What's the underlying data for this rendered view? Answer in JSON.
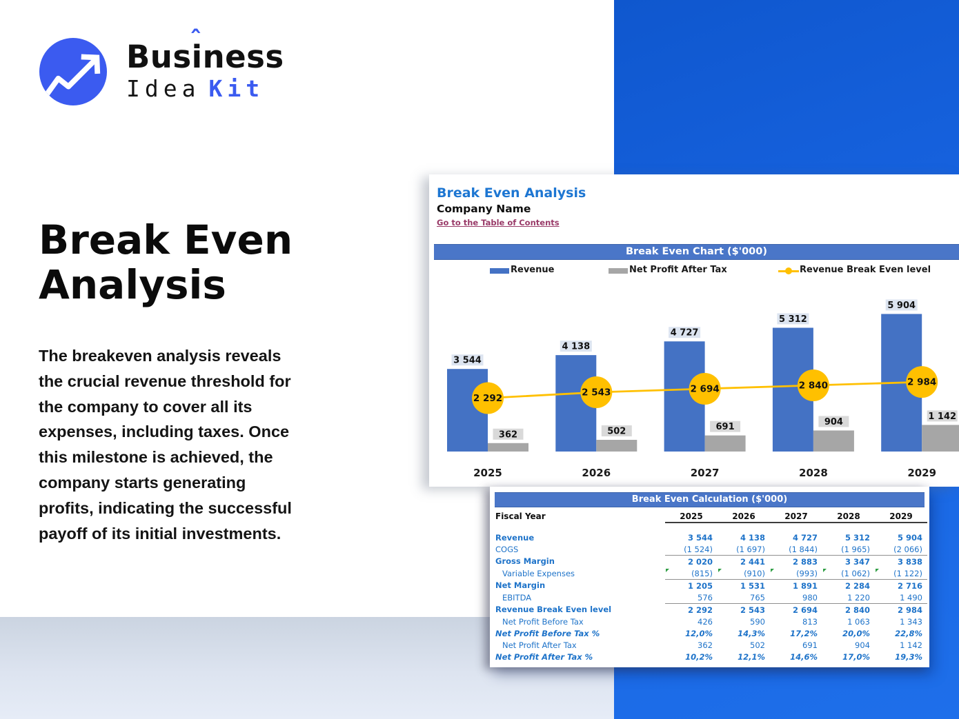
{
  "brand": {
    "name_pre": "Bus",
    "name_i": "i",
    "name_post": "ness",
    "accent_mark": "ˆ",
    "tagline_word1": "Idea",
    "tagline_word2": "Kit"
  },
  "hero": {
    "title_lines": [
      "Break Even",
      "Analysis"
    ],
    "description_lines": [
      "The breakeven analysis reveals",
      "the crucial revenue threshold for",
      "the company to cover all its",
      "expenses, including taxes. Once",
      "this milestone is achieved, the",
      "company starts generating",
      "profits, indicating the successful",
      "payoff of its initial investments."
    ]
  },
  "sheet": {
    "title": "Break Even Analysis",
    "company": "Company Name",
    "toc_link": "Go to the Table of Contents"
  },
  "chart_data": {
    "type": "bar",
    "title": "Break Even Chart ($'000)",
    "categories": [
      "2025",
      "2026",
      "2027",
      "2028",
      "2029"
    ],
    "series": [
      {
        "name": "Revenue",
        "type": "bar",
        "color": "#4472C4",
        "values": [
          3544,
          4138,
          4727,
          5312,
          5904
        ]
      },
      {
        "name": "Net Profit After Tax",
        "type": "bar",
        "color": "#A6A6A6",
        "values": [
          362,
          502,
          691,
          904,
          1142
        ]
      },
      {
        "name": "Revenue Break Even level",
        "type": "line",
        "color": "#FFC000",
        "values": [
          2292,
          2543,
          2694,
          2840,
          2984
        ]
      }
    ],
    "ylim": [
      0,
      6500
    ],
    "grid": false,
    "legend_position": "top",
    "value_label_thousands_separator": "space"
  },
  "calc_table": {
    "title": "Break Even Calculation ($'000)",
    "row_header": "Fiscal Year",
    "columns": [
      "2025",
      "2026",
      "2027",
      "2028",
      "2029"
    ],
    "rows": [
      {
        "label": "Revenue",
        "bold": true,
        "values": [
          "3 544",
          "4 138",
          "4 727",
          "5 312",
          "5 904"
        ]
      },
      {
        "label": "COGS",
        "divider": true,
        "values": [
          "(1 524)",
          "(1 697)",
          "(1 844)",
          "(1 965)",
          "(2 066)"
        ]
      },
      {
        "label": "Gross Margin",
        "bold": true,
        "values": [
          "2 020",
          "2 441",
          "2 883",
          "3 347",
          "3 838"
        ]
      },
      {
        "label": "Variable Expenses",
        "indent": true,
        "divider": true,
        "flags": true,
        "values": [
          "(815)",
          "(910)",
          "(993)",
          "(1 062)",
          "(1 122)"
        ]
      },
      {
        "label": "Net Margin",
        "bold": true,
        "values": [
          "1 205",
          "1 531",
          "1 891",
          "2 284",
          "2 716"
        ]
      },
      {
        "label": "EBITDA",
        "indent": true,
        "divider": true,
        "values": [
          "576",
          "765",
          "980",
          "1 220",
          "1 490"
        ]
      },
      {
        "label": "Revenue Break Even level",
        "bold": true,
        "values": [
          "2 292",
          "2 543",
          "2 694",
          "2 840",
          "2 984"
        ]
      },
      {
        "label": "Net Profit Before Tax",
        "indent": true,
        "values": [
          "426",
          "590",
          "813",
          "1 063",
          "1 343"
        ]
      },
      {
        "label": "Net Profit Before Tax %",
        "bold": true,
        "italic": true,
        "values": [
          "12,0%",
          "14,3%",
          "17,2%",
          "20,0%",
          "22,8%"
        ]
      },
      {
        "label": "Net Profit After Tax",
        "indent": true,
        "values": [
          "362",
          "502",
          "691",
          "904",
          "1 142"
        ]
      },
      {
        "label": "Net Profit After Tax %",
        "bold": true,
        "italic": true,
        "values": [
          "10,2%",
          "12,1%",
          "14,6%",
          "17,0%",
          "19,3%"
        ]
      }
    ]
  },
  "colors": {
    "brand_blue": "#3B5BF0",
    "bg_blue": "#1763E0",
    "bg_blue_dark": "#0F57CE",
    "bg_blue_light": "#1E6FEA",
    "banner_blue": "#4A76C8",
    "bar_blue": "#4472C4",
    "bar_gray": "#A6A6A6",
    "line_yellow": "#FFC000",
    "sheet_title_blue": "#1D76D2",
    "link_maroon": "#993A68",
    "table_blue": "#1E73C9",
    "flag_green": "#2F9E44",
    "label_box_blue": "#DCE4F0",
    "label_box_gray": "#D9D9D9"
  }
}
